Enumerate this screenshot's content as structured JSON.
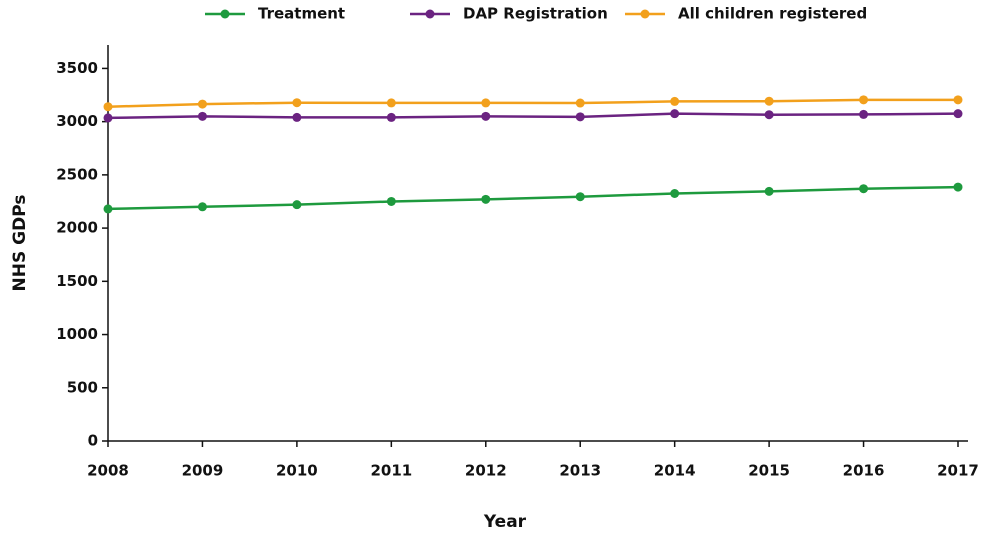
{
  "chart_data": {
    "type": "line",
    "x": [
      2008,
      2009,
      2010,
      2011,
      2012,
      2013,
      2014,
      2015,
      2016,
      2017
    ],
    "series": [
      {
        "name": "Treatment",
        "color": "#1e9a3e",
        "values": [
          2180,
          2200,
          2220,
          2250,
          2270,
          2295,
          2325,
          2345,
          2370,
          2385
        ]
      },
      {
        "name": "DAP Registration",
        "color": "#6b2381",
        "values": [
          3035,
          3050,
          3040,
          3040,
          3050,
          3045,
          3075,
          3065,
          3068,
          3075
        ]
      },
      {
        "name": "All children registered",
        "color": "#f2a01c",
        "values": [
          3140,
          3165,
          3178,
          3176,
          3176,
          3175,
          3190,
          3192,
          3205,
          3205
        ]
      }
    ],
    "xlabel": "Year",
    "ylabel": "NHS GDPs",
    "xlim": [
      2008,
      2017
    ],
    "xticks": [
      2008,
      2009,
      2010,
      2011,
      2012,
      2013,
      2014,
      2015,
      2016,
      2017
    ],
    "ylim": [
      0,
      3720
    ],
    "yticks": [
      0,
      500,
      1000,
      1500,
      2000,
      2500,
      3000,
      3500
    ],
    "legend": "top"
  }
}
